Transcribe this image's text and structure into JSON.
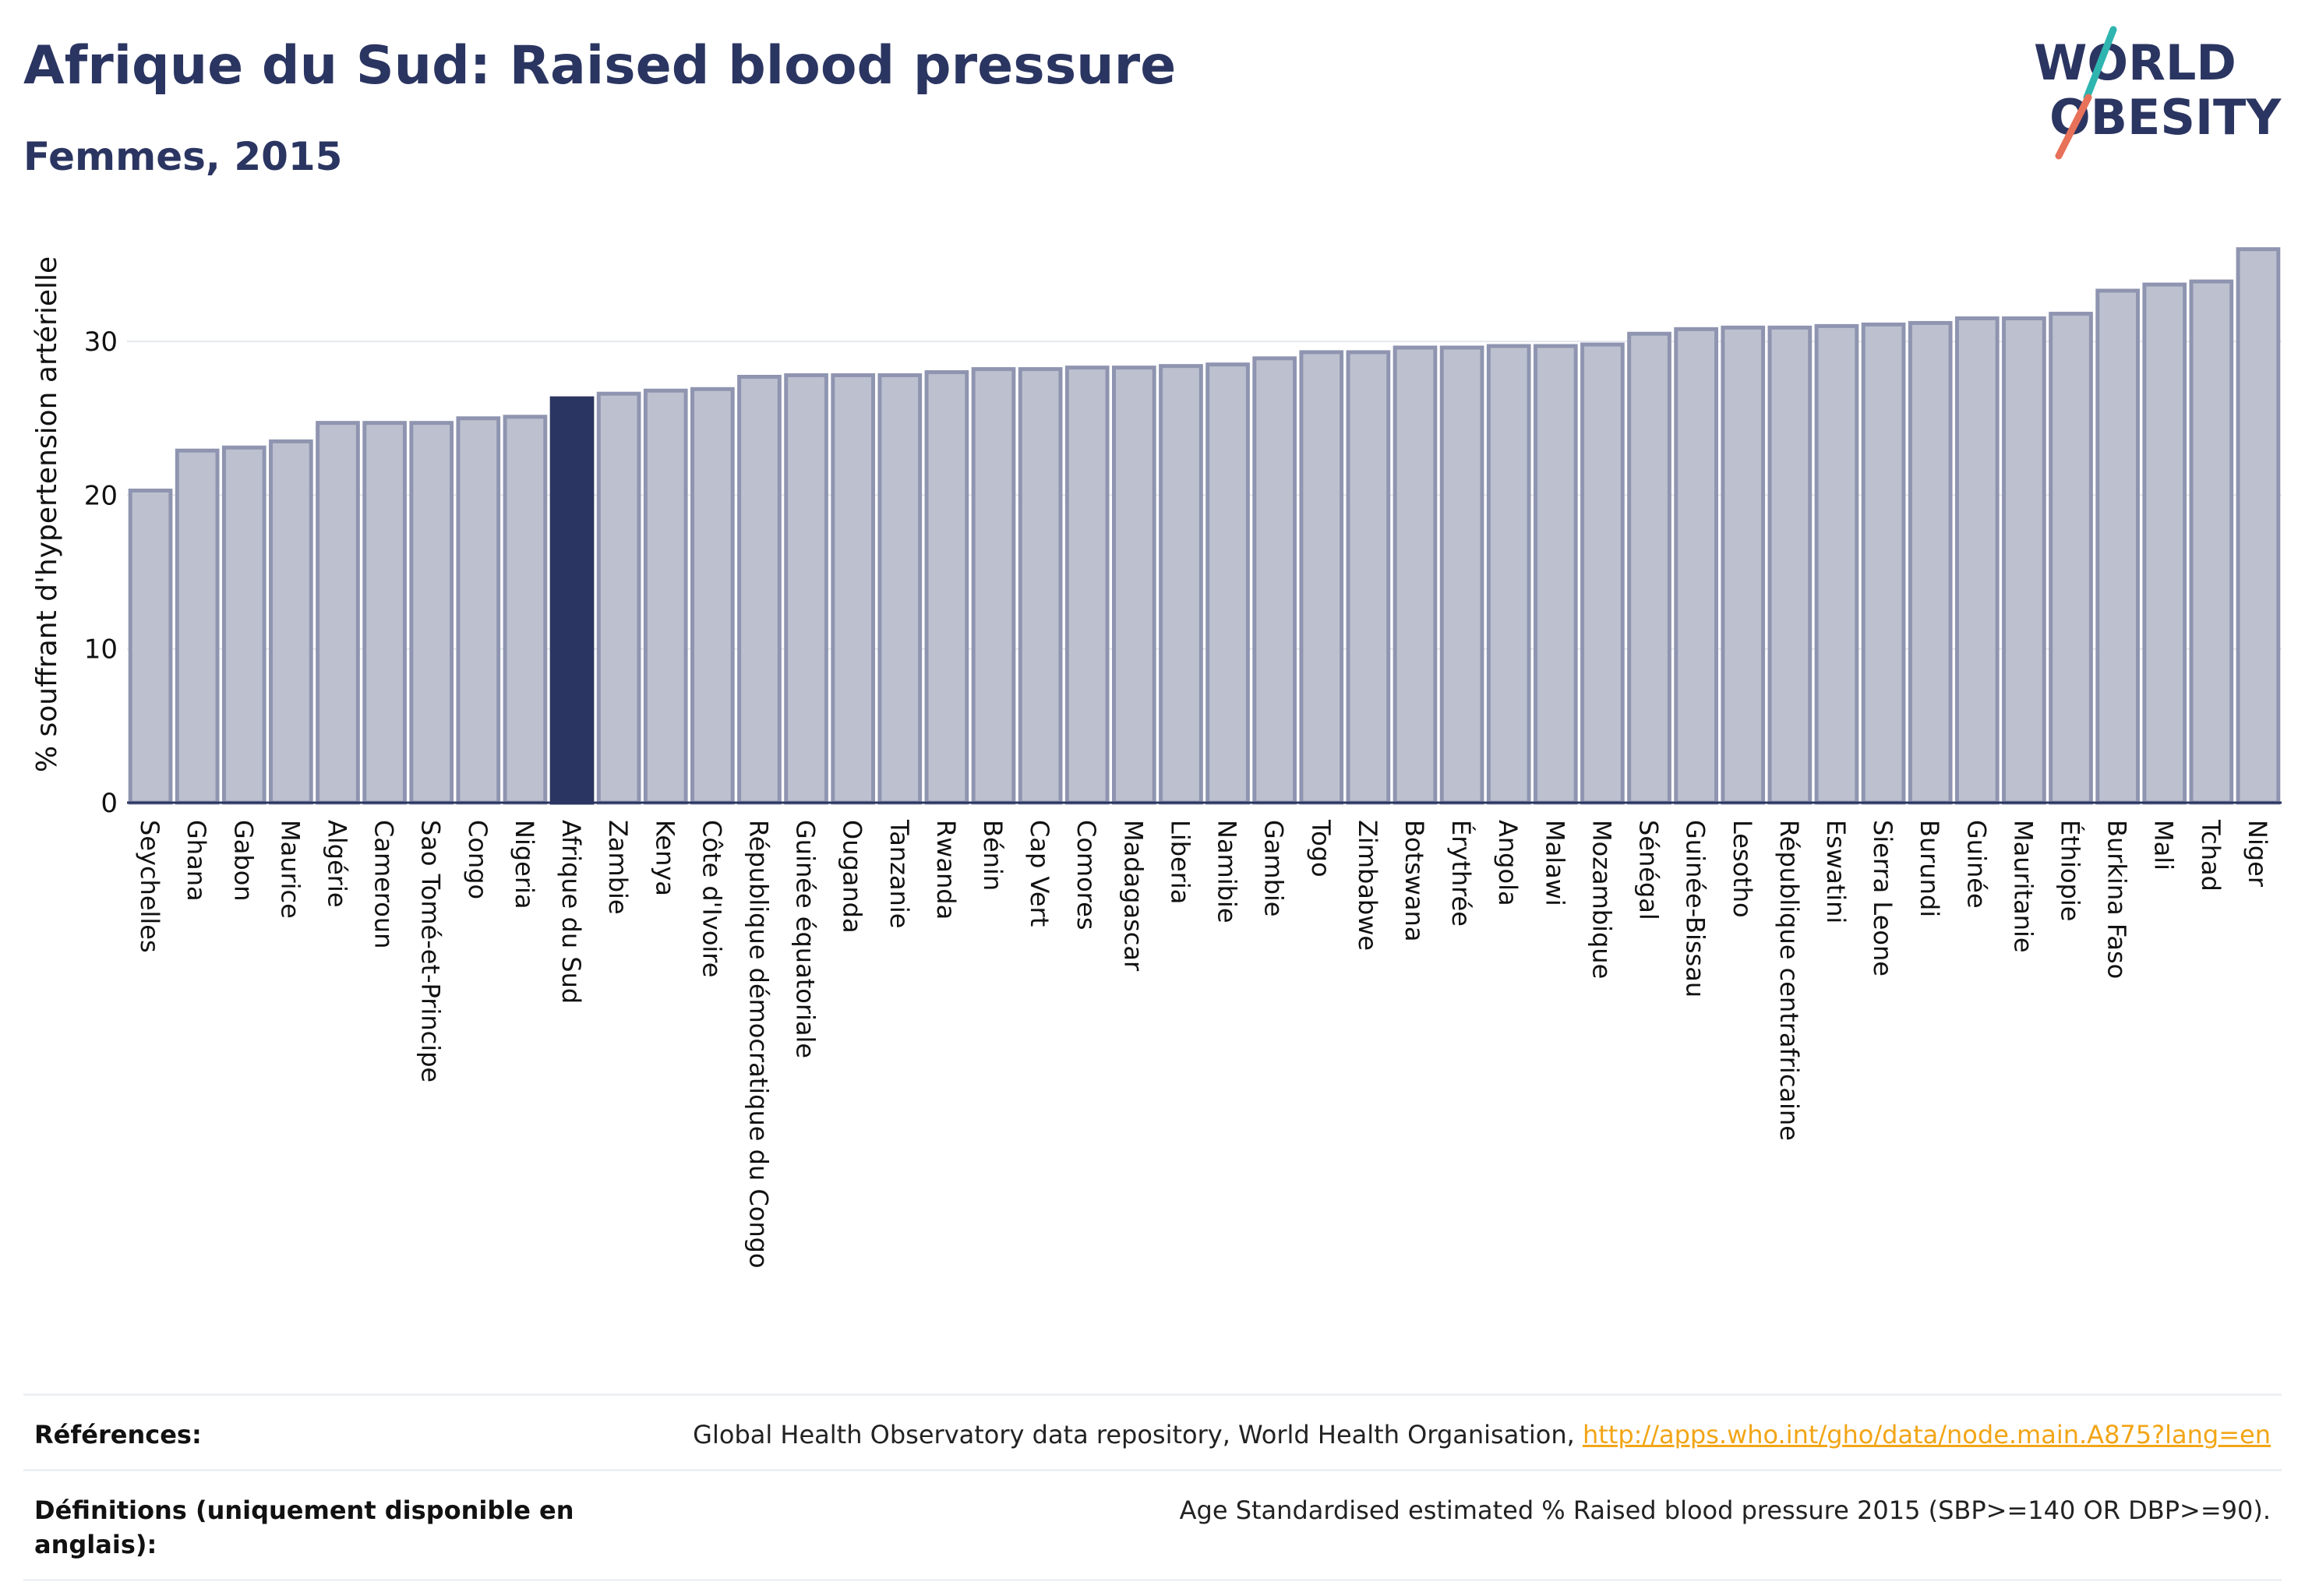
{
  "header": {
    "title": "Afrique du Sud: Raised blood pressure",
    "subtitle": "Femmes, 2015"
  },
  "logo": {
    "line1": "WORLD",
    "line2": "OBESITY"
  },
  "colors": {
    "bar": "#bdc1cf",
    "bar_stroke": "#8f95b0",
    "highlight": "#2b3561",
    "text": "#2b3561",
    "grid": "#e6e8ee",
    "link": "#f2a516",
    "logo_teal": "#2fb5b0",
    "logo_coral": "#e8715a"
  },
  "chart_data": {
    "type": "bar",
    "title": "",
    "xlabel": "",
    "ylabel": "% souffrant d'hypertension artérielle",
    "ylim": [
      0,
      37
    ],
    "yticks": [
      0,
      10,
      20,
      30
    ],
    "grid": true,
    "highlight": "Afrique du Sud",
    "categories": [
      "Seychelles",
      "Ghana",
      "Gabon",
      "Maurice",
      "Algérie",
      "Cameroun",
      "Sao Tomé-et-Principe",
      "Congo",
      "Nigeria",
      "Afrique du Sud",
      "Zambie",
      "Kenya",
      "Côte d'Ivoire",
      "République démocratique du Congo",
      "Guinée équatoriale",
      "Ouganda",
      "Tanzanie",
      "Rwanda",
      "Bénin",
      "Cap Vert",
      "Comores",
      "Madagascar",
      "Liberia",
      "Namibie",
      "Gambie",
      "Togo",
      "Zimbabwe",
      "Botswana",
      "Érythrée",
      "Angola",
      "Malawi",
      "Mozambique",
      "Sénégal",
      "Guinée-Bissau",
      "Lesotho",
      "République centrafricaine",
      "Eswatini",
      "Sierra Leone",
      "Burundi",
      "Guinée",
      "Mauritanie",
      "Éthiopie",
      "Burkina Faso",
      "Mali",
      "Tchad",
      "Niger"
    ],
    "values": [
      20.3,
      22.9,
      23.1,
      23.5,
      24.7,
      24.7,
      24.7,
      25.0,
      25.1,
      26.3,
      26.6,
      26.8,
      26.9,
      27.7,
      27.8,
      27.8,
      27.8,
      28.0,
      28.2,
      28.2,
      28.3,
      28.3,
      28.4,
      28.5,
      28.9,
      29.3,
      29.3,
      29.6,
      29.6,
      29.7,
      29.7,
      29.8,
      30.5,
      30.8,
      30.9,
      30.9,
      31.0,
      31.1,
      31.2,
      31.5,
      31.5,
      31.8,
      33.3,
      33.7,
      33.9,
      36.0
    ]
  },
  "footer": {
    "references_label": "Références:",
    "references_text": "Global Health Observatory data repository, World Health Organisation, ",
    "references_link": "http://apps.who.int/gho/data/node.main.A875?lang=en",
    "definitions_label": "Définitions (uniquement disponible en anglais):",
    "definitions_text": "Age Standardised estimated % Raised blood pressure 2015 (SBP>=140 OR DBP>=90)."
  }
}
